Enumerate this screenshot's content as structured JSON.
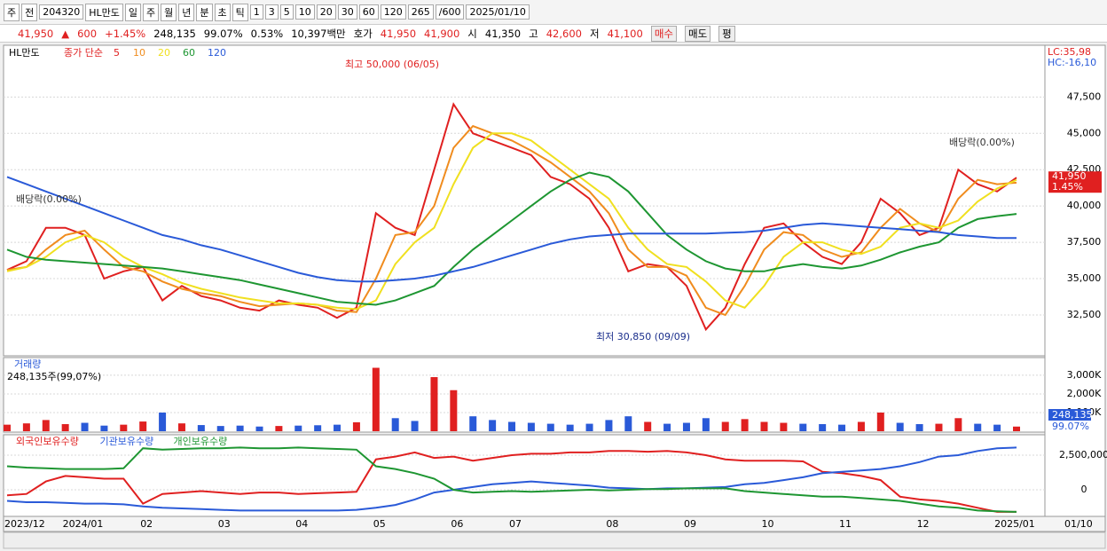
{
  "header": {
    "fields": [
      "주",
      "전",
      "204320",
      "HL만도",
      "일",
      "주",
      "월",
      "년",
      "분",
      "초",
      "틱",
      "1",
      "3",
      "5",
      "10",
      "20",
      "30",
      "60",
      "120",
      "265",
      "/600",
      "2025/01/10"
    ]
  },
  "info": {
    "price": "41,950",
    "arrow": "▲",
    "change": "600",
    "change_pct": "+1.45%",
    "volume": "248,135",
    "volume_ratio": "99.07%",
    "turnover": "0.53%",
    "amount": "10,397백만",
    "quote_label": "호가",
    "ask": "41,950",
    "bid": "41,900",
    "open_label": "시",
    "open": "41,350",
    "high_label": "고",
    "high": "42,600",
    "low_label": "저",
    "low": "41,100",
    "buy": "매수",
    "sell": "매도",
    "avg": "평"
  },
  "chart_data": [
    {
      "type": "line",
      "title": "HL만도",
      "legend_prefix": "종가 단순",
      "lc": "LC:35,98",
      "hc": "HC:-16,10",
      "ylim": [
        29750,
        51000
      ],
      "yticks": [
        {
          "value": 32500,
          "label": "32,500"
        },
        {
          "value": 35000,
          "label": "35,000"
        },
        {
          "value": 37500,
          "label": "37,500"
        },
        {
          "value": 40000,
          "label": "40,000"
        },
        {
          "value": 42500,
          "label": "42,500"
        },
        {
          "value": 45000,
          "label": "45,000"
        },
        {
          "value": 47500,
          "label": "47,500"
        }
      ],
      "last_label": "41,950",
      "last_change": "1.45%",
      "annotations": [
        "최고 50,000 (06/05)",
        "최저 30,850 (09/09)",
        "배당락(0.00%)",
        "배당락(0.00%)"
      ],
      "series": [
        {
          "name": "5",
          "color": "#e02020",
          "values": [
            35600,
            36200,
            38500,
            38500,
            38000,
            35000,
            35500,
            35800,
            33500,
            34500,
            33800,
            33500,
            33000,
            32800,
            33500,
            33200,
            33000,
            32300,
            33000,
            39500,
            38500,
            38000,
            42500,
            47000,
            45000,
            44500,
            44000,
            43500,
            42000,
            41500,
            40500,
            38500,
            35500,
            36000,
            35800,
            34500,
            31500,
            33000,
            36000,
            38500,
            38800,
            37500,
            36500,
            36000,
            37500,
            40500,
            39500,
            38000,
            38500,
            42500,
            41500,
            41000,
            41950
          ]
        },
        {
          "name": "10",
          "color": "#f08c1e",
          "values": [
            35600,
            35800,
            37000,
            38000,
            38300,
            37000,
            35800,
            35500,
            34800,
            34300,
            34000,
            33800,
            33400,
            33100,
            33200,
            33300,
            33200,
            32800,
            32700,
            35000,
            38000,
            38200,
            40000,
            44000,
            45500,
            45000,
            44500,
            43800,
            43000,
            42000,
            41000,
            39500,
            37000,
            35800,
            35800,
            35200,
            33000,
            32500,
            34500,
            37000,
            38200,
            38000,
            37000,
            36500,
            36800,
            38500,
            39800,
            38800,
            38200,
            40500,
            41800,
            41500,
            41600
          ]
        },
        {
          "name": "20",
          "color": "#f0e020",
          "values": [
            35500,
            35800,
            36500,
            37500,
            38000,
            37500,
            36500,
            35800,
            35300,
            34700,
            34300,
            34000,
            33700,
            33500,
            33300,
            33300,
            33200,
            33000,
            32900,
            33500,
            36000,
            37500,
            38500,
            41500,
            44000,
            45000,
            45000,
            44500,
            43500,
            42500,
            41500,
            40500,
            38500,
            37000,
            36000,
            35800,
            34800,
            33500,
            33000,
            34500,
            36500,
            37500,
            37500,
            37000,
            36700,
            37200,
            38500,
            38800,
            38500,
            39000,
            40300,
            41200,
            41800
          ]
        },
        {
          "name": "60",
          "color": "#1e9632",
          "values": [
            37000,
            36500,
            36300,
            36200,
            36100,
            36000,
            35900,
            35800,
            35700,
            35500,
            35300,
            35100,
            34900,
            34600,
            34300,
            34000,
            33700,
            33400,
            33300,
            33200,
            33500,
            34000,
            34500,
            35800,
            37000,
            38000,
            39000,
            40000,
            41000,
            41800,
            42300,
            42000,
            41000,
            39500,
            38000,
            37000,
            36200,
            35700,
            35500,
            35500,
            35800,
            36000,
            35800,
            35700,
            35900,
            36300,
            36800,
            37200,
            37500,
            38500,
            39100,
            39300,
            39450
          ]
        },
        {
          "name": "120",
          "color": "#2a5ad8",
          "values": [
            42000,
            41500,
            41000,
            40500,
            40000,
            39500,
            39000,
            38500,
            38000,
            37700,
            37300,
            37000,
            36600,
            36200,
            35800,
            35400,
            35100,
            34900,
            34800,
            34800,
            34900,
            35000,
            35200,
            35500,
            35800,
            36200,
            36600,
            37000,
            37400,
            37700,
            37900,
            38000,
            38100,
            38100,
            38100,
            38100,
            38100,
            38150,
            38200,
            38300,
            38500,
            38700,
            38800,
            38700,
            38600,
            38500,
            38400,
            38300,
            38200,
            38000,
            37900,
            37800,
            37800
          ]
        }
      ]
    },
    {
      "type": "bar",
      "title": "거래량",
      "subtitle": "248,135주(99,07%)",
      "last_label": "248,135",
      "last_ratio": "99.07%",
      "up_color": "#e02020",
      "down_color": "#2a5ad8",
      "ylim": [
        0,
        3900000
      ],
      "yticks": [
        {
          "value": 1000000,
          "label": "1,000K"
        },
        {
          "value": 2000000,
          "label": "2,000K"
        },
        {
          "value": 3000000,
          "label": "3,000K"
        }
      ],
      "values": [
        350000,
        420000,
        600000,
        380000,
        450000,
        300000,
        350000,
        520000,
        1000000,
        420000,
        330000,
        280000,
        300000,
        250000,
        280000,
        300000,
        320000,
        350000,
        480000,
        3400000,
        700000,
        550000,
        2900000,
        2200000,
        800000,
        600000,
        500000,
        450000,
        400000,
        350000,
        400000,
        600000,
        800000,
        500000,
        400000,
        450000,
        700000,
        500000,
        650000,
        500000,
        450000,
        400000,
        380000,
        350000,
        500000,
        1000000,
        450000,
        380000,
        400000,
        700000,
        400000,
        350000,
        248135
      ]
    },
    {
      "type": "line",
      "last_date": "01/10",
      "categories": [
        "2023/12",
        null,
        null,
        "2024/01",
        null,
        null,
        null,
        "02",
        null,
        null,
        null,
        "03",
        null,
        null,
        null,
        "04",
        null,
        null,
        null,
        "05",
        null,
        null,
        null,
        "06",
        null,
        null,
        "07",
        null,
        null,
        null,
        null,
        "08",
        null,
        null,
        null,
        "09",
        null,
        null,
        null,
        "10",
        null,
        null,
        null,
        "11",
        null,
        null,
        null,
        "12",
        null,
        null,
        null,
        "2025/01",
        null
      ],
      "ylim": [
        -1860000,
        3910000
      ],
      "yticks": [
        0,
        {
          "value": 2500000,
          "label": "2,500,000"
        }
      ],
      "series": [
        {
          "name": "외국인보유수량",
          "color": "#e02020",
          "values": [
            -400000,
            -300000,
            600000,
            1000000,
            900000,
            800000,
            800000,
            -1000000,
            -300000,
            -200000,
            -100000,
            -200000,
            -300000,
            -200000,
            -200000,
            -300000,
            -250000,
            -200000,
            -150000,
            2200000,
            2400000,
            2700000,
            2300000,
            2400000,
            2100000,
            2300000,
            2500000,
            2600000,
            2600000,
            2700000,
            2700000,
            2800000,
            2800000,
            2750000,
            2800000,
            2700000,
            2500000,
            2200000,
            2100000,
            2100000,
            2100000,
            2050000,
            1300000,
            1200000,
            1000000,
            700000,
            -500000,
            -700000,
            -800000,
            -1000000,
            -1300000,
            -1600000,
            -1600000
          ]
        },
        {
          "name": "기관보유수량",
          "color": "#2a5ad8",
          "values": [
            -800000,
            -900000,
            -900000,
            -950000,
            -1000000,
            -1000000,
            -1050000,
            -1200000,
            -1300000,
            -1350000,
            -1400000,
            -1450000,
            -1500000,
            -1500000,
            -1500000,
            -1500000,
            -1500000,
            -1500000,
            -1450000,
            -1300000,
            -1100000,
            -700000,
            -200000,
            0,
            200000,
            400000,
            500000,
            600000,
            500000,
            400000,
            300000,
            150000,
            100000,
            50000,
            100000,
            100000,
            150000,
            200000,
            400000,
            500000,
            700000,
            900000,
            1200000,
            1300000,
            1400000,
            1500000,
            1700000,
            2000000,
            2400000,
            2500000,
            2800000,
            3000000,
            3050000
          ]
        },
        {
          "name": "개인보유수량",
          "color": "#1e9632",
          "values": [
            1700000,
            1600000,
            1550000,
            1500000,
            1500000,
            1500000,
            1550000,
            3000000,
            2900000,
            2950000,
            3000000,
            3000000,
            3050000,
            3000000,
            3000000,
            3050000,
            3000000,
            2950000,
            2900000,
            1700000,
            1500000,
            1200000,
            800000,
            0,
            -200000,
            -150000,
            -100000,
            -150000,
            -100000,
            -50000,
            0,
            -50000,
            0,
            50000,
            50000,
            100000,
            100000,
            100000,
            -100000,
            -200000,
            -300000,
            -400000,
            -500000,
            -500000,
            -600000,
            -700000,
            -800000,
            -1000000,
            -1200000,
            -1300000,
            -1500000,
            -1550000,
            -1600000
          ]
        }
      ]
    }
  ]
}
